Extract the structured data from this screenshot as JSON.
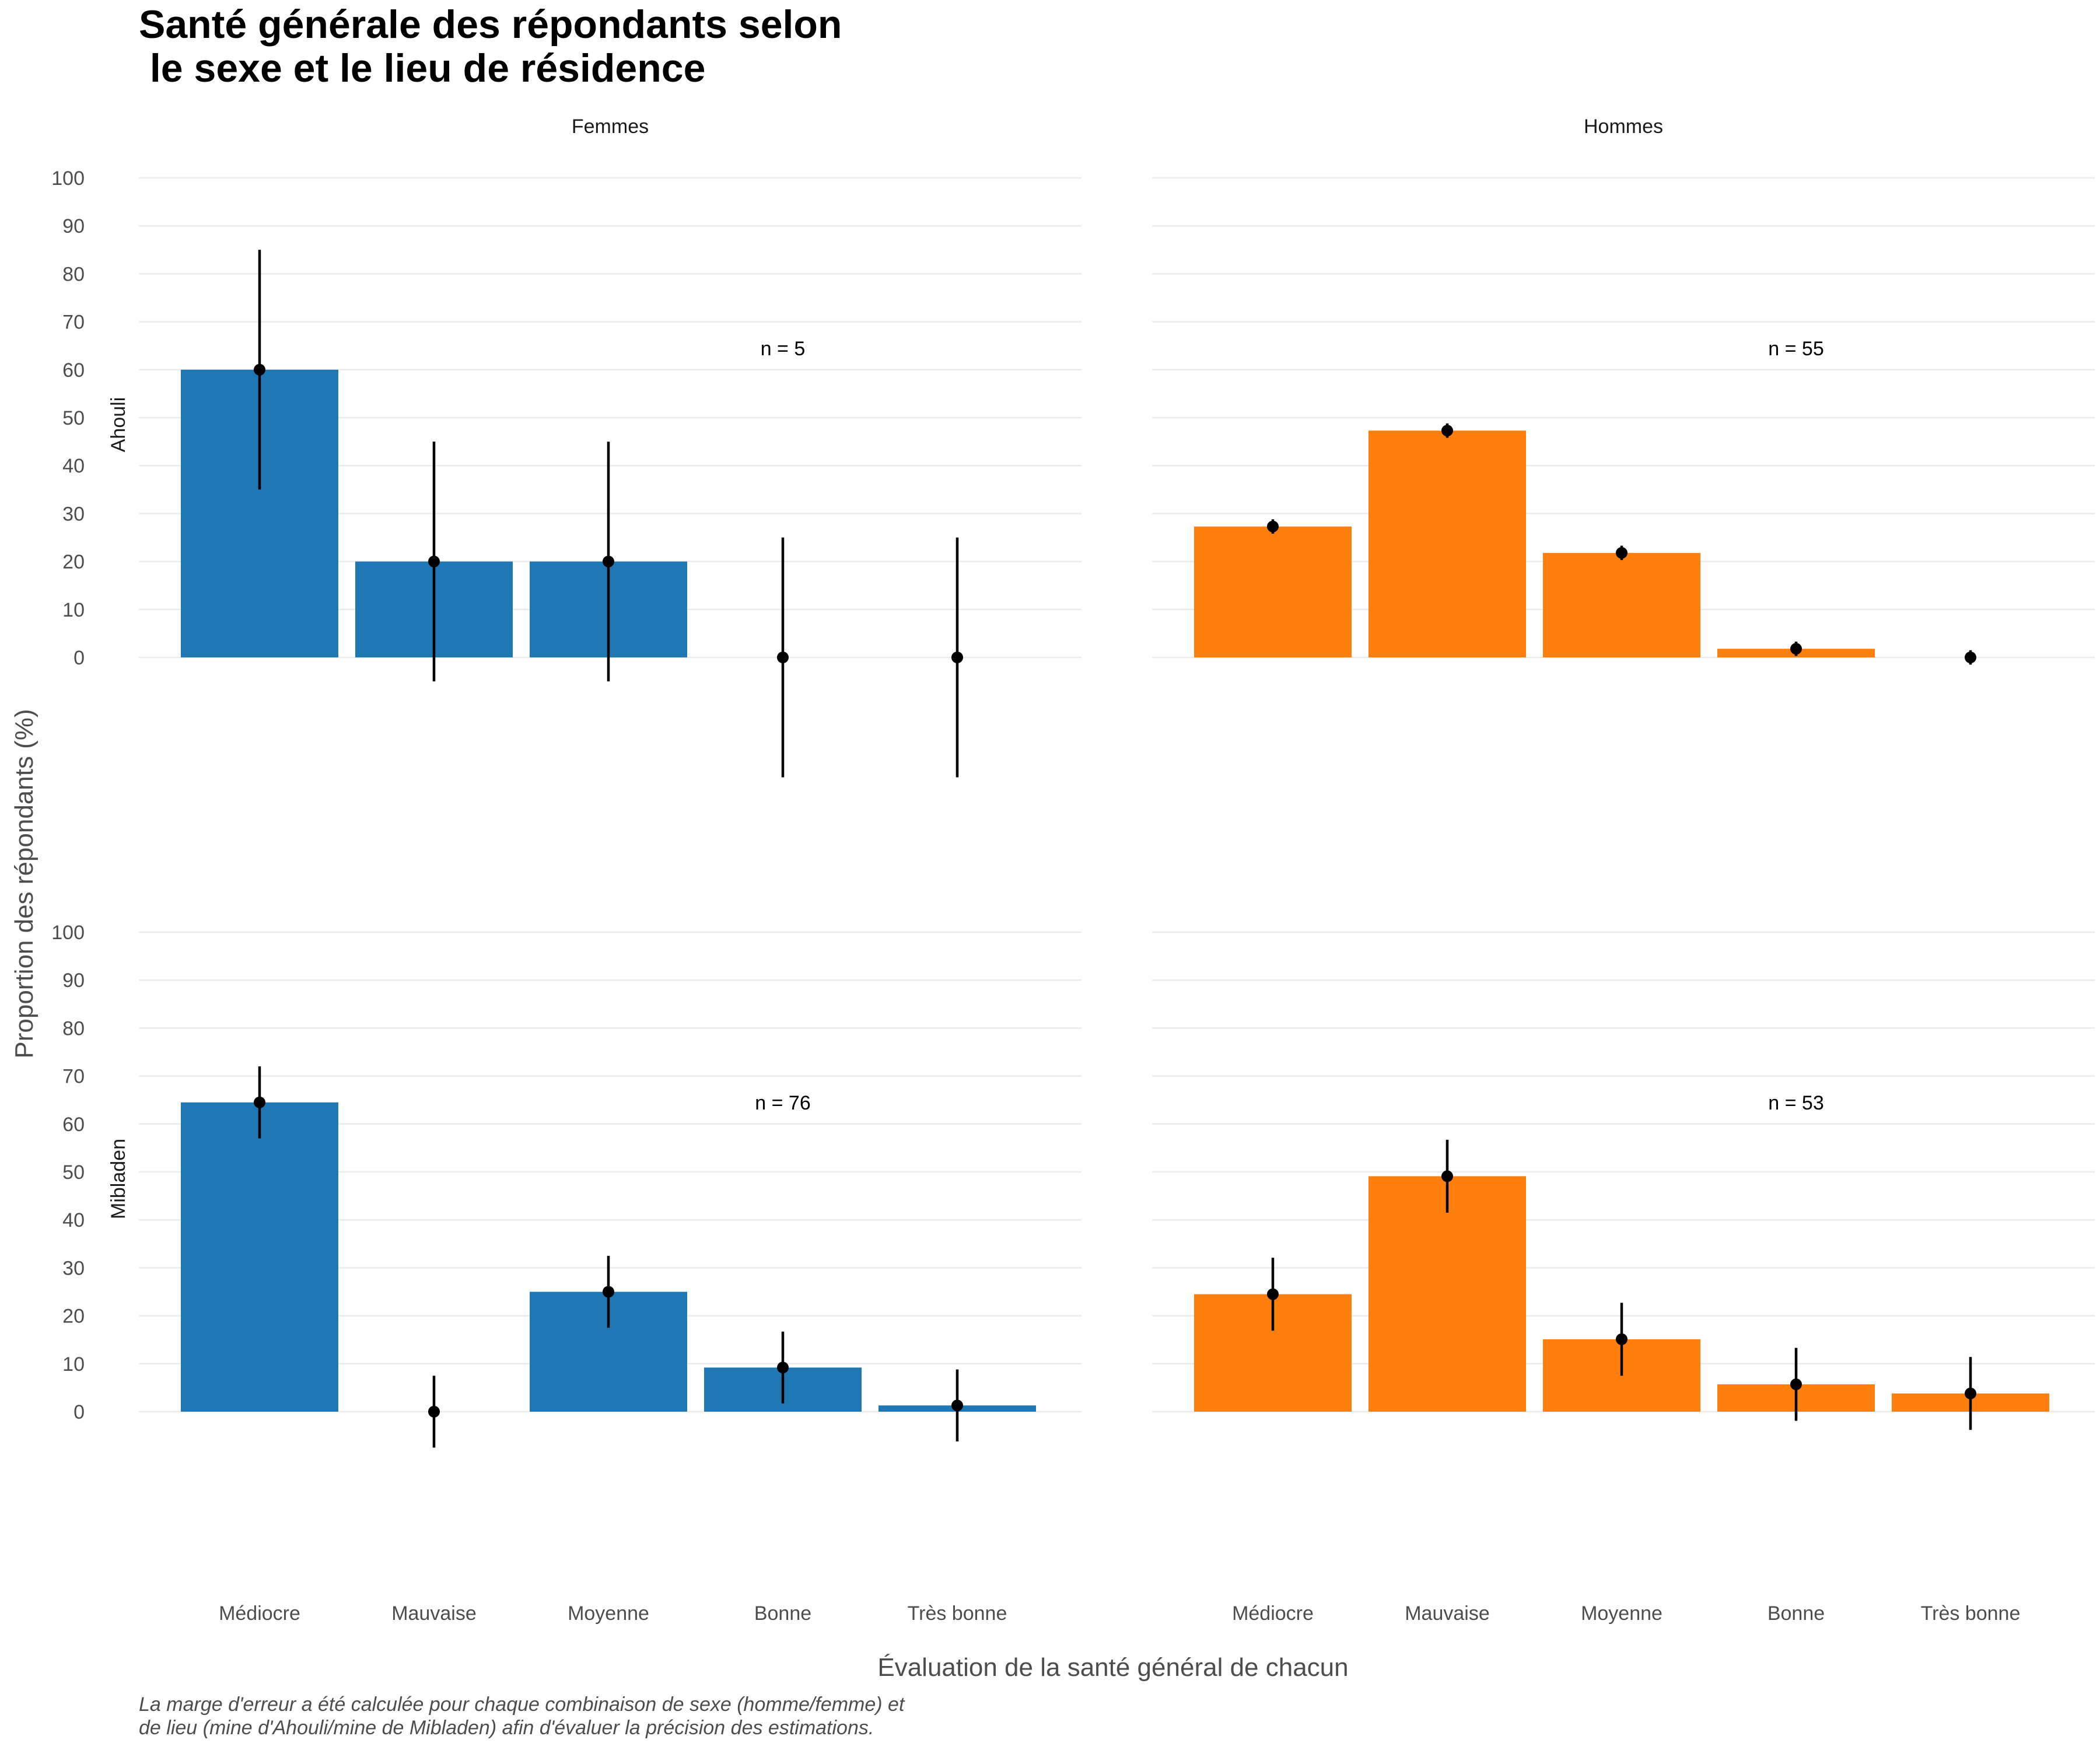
{
  "title_lines": [
    "Santé générale des répondants selon",
    " le sexe et le lieu de résidence"
  ],
  "caption_lines": [
    "La marge d'erreur a été calculée pour chaque combinaison de sexe (homme/femme) et",
    "de lieu (mine d'Ahouli/mine de Mibladen) afin d'évaluer la précision des estimations."
  ],
  "chart_data": {
    "type": "bar",
    "xlabel": "Évaluation de la santé général de chacun",
    "ylabel": "Proportion des répondants (%)",
    "ylim": [
      0,
      100
    ],
    "yticks": [
      "0",
      "10",
      "20",
      "30",
      "40",
      "50",
      "60",
      "70",
      "80",
      "90",
      "100"
    ],
    "categories": [
      "Médiocre",
      "Mauvaise",
      "Moyenne",
      "Bonne",
      "Très bonne"
    ],
    "columns": [
      "Femmes",
      "Hommes"
    ],
    "rows": [
      "Ahouli",
      "Mibladen"
    ],
    "colors": {
      "Femmes": "#1f77b4",
      "Hommes": "#ff7f0e"
    },
    "grid": true,
    "legend": "none",
    "panels": [
      {
        "row": "Ahouli",
        "column": "Femmes",
        "n_label": "n = 5",
        "values": [
          60,
          20,
          20,
          0,
          0
        ],
        "lower": [
          35,
          -5,
          -5,
          -25,
          -25
        ],
        "upper": [
          85,
          45,
          45,
          25,
          25
        ]
      },
      {
        "row": "Ahouli",
        "column": "Hommes",
        "n_label": "n = 55",
        "values": [
          27.3,
          47.3,
          21.8,
          1.8,
          0
        ],
        "lower": [
          25.8,
          45.8,
          20.3,
          0.3,
          -1.5
        ],
        "upper": [
          28.8,
          48.8,
          23.3,
          3.3,
          1.5
        ]
      },
      {
        "row": "Mibladen",
        "column": "Femmes",
        "n_label": "n = 76",
        "values": [
          64.5,
          0,
          25,
          9.2,
          1.3
        ],
        "lower": [
          57,
          -7.5,
          17.5,
          1.7,
          -6.2
        ],
        "upper": [
          72,
          7.5,
          32.5,
          16.7,
          8.8
        ]
      },
      {
        "row": "Mibladen",
        "column": "Hommes",
        "n_label": "n = 53",
        "values": [
          24.5,
          49.1,
          15.1,
          5.7,
          3.8
        ],
        "lower": [
          16.9,
          41.5,
          7.5,
          -1.9,
          -3.8
        ],
        "upper": [
          32.1,
          56.7,
          22.7,
          13.3,
          11.4
        ]
      }
    ]
  }
}
